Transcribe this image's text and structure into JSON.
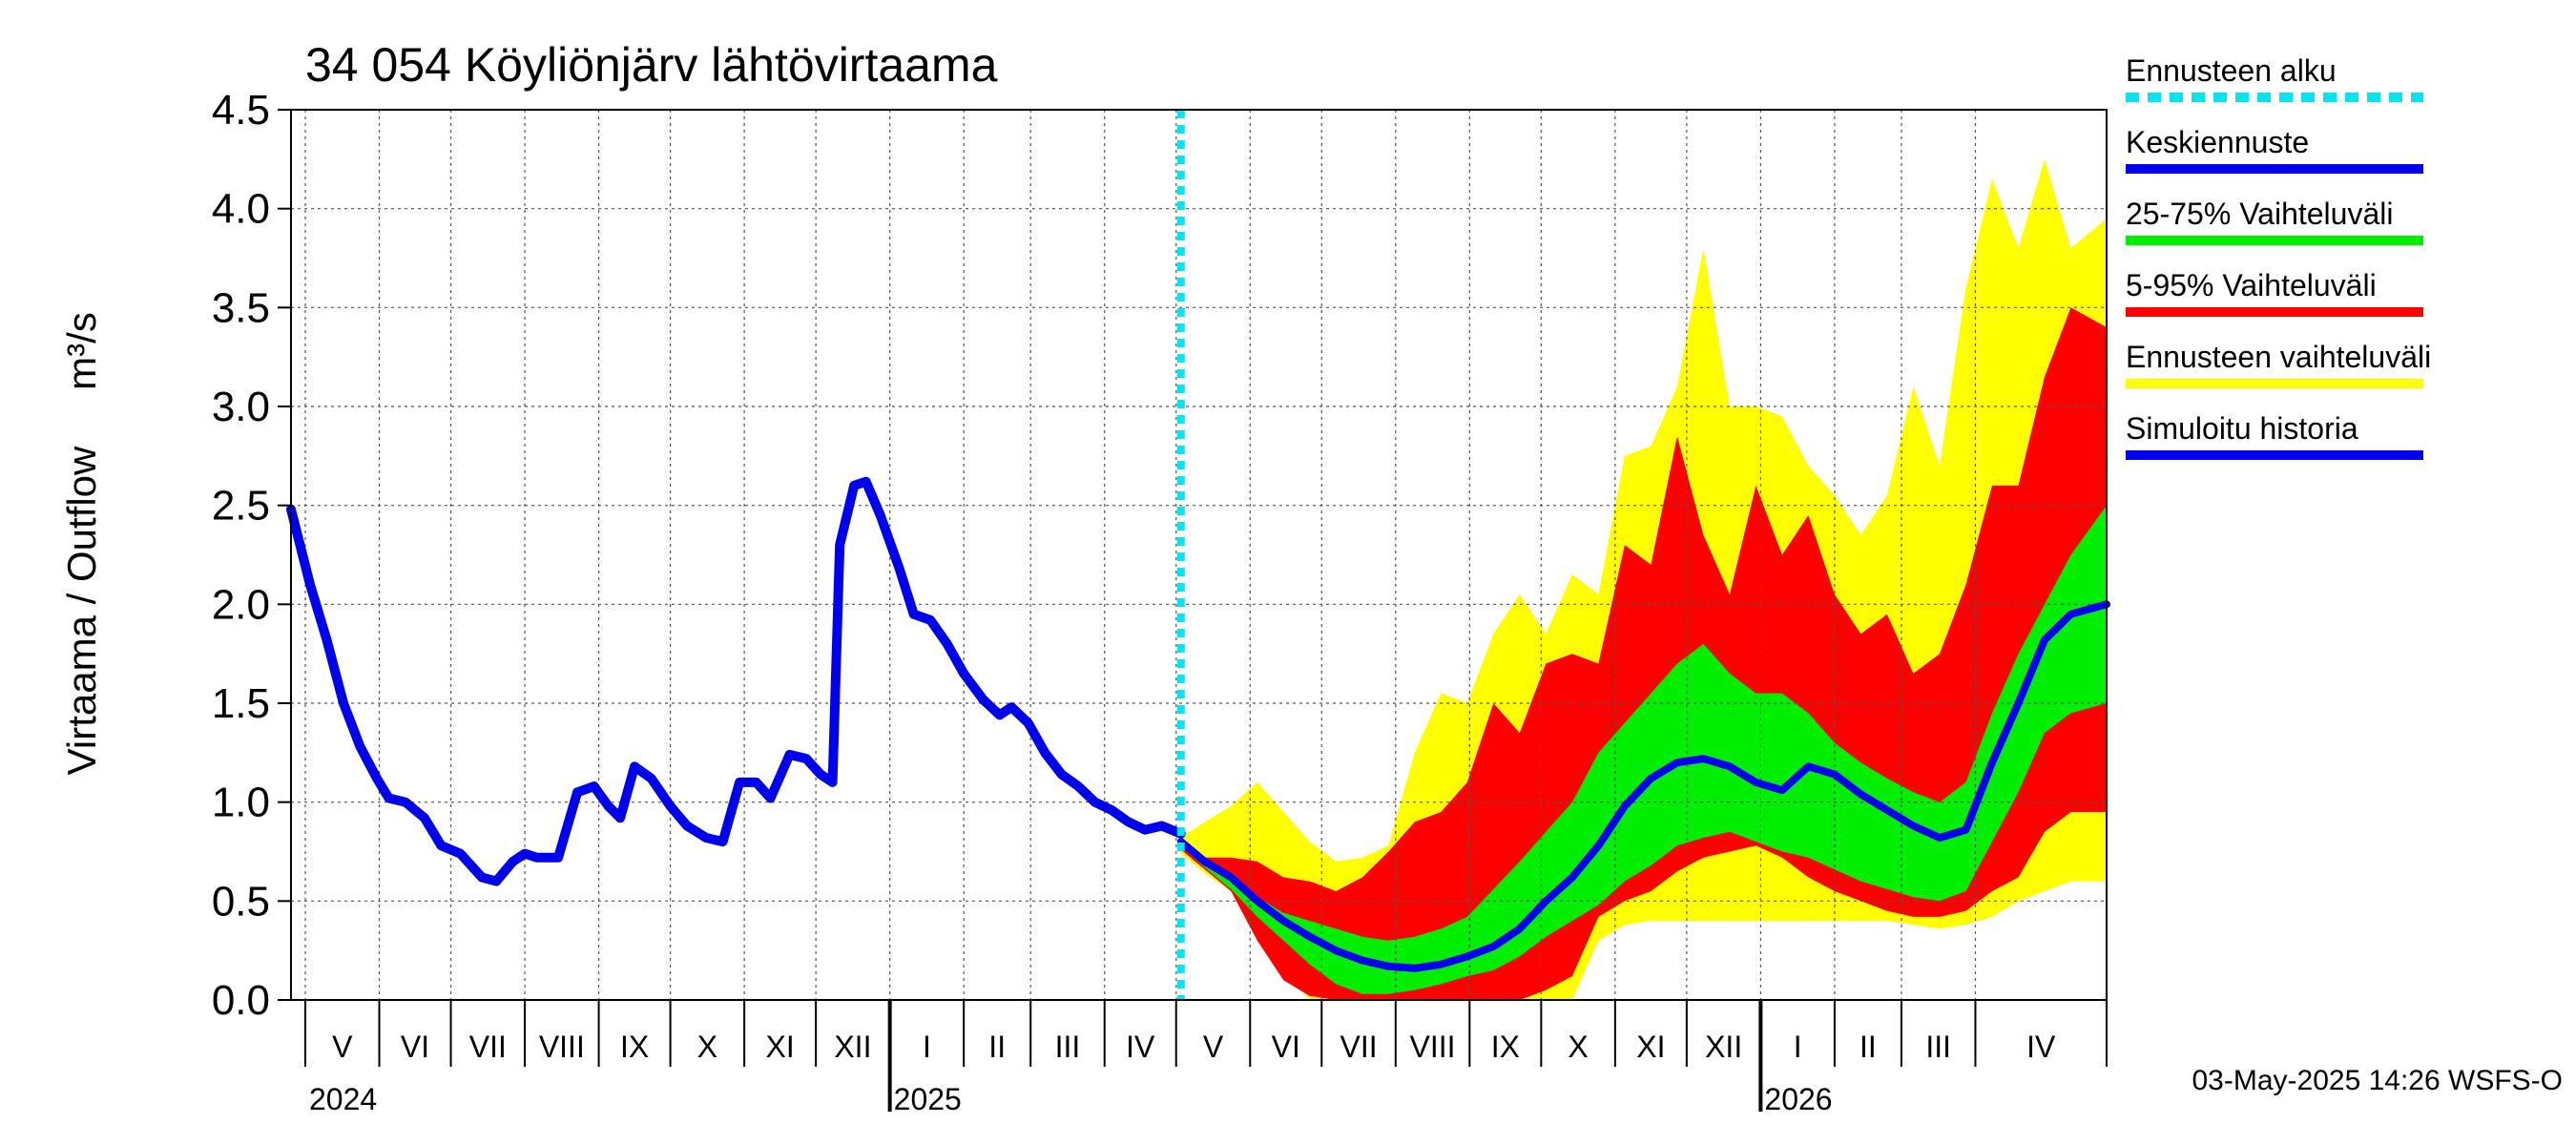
{
  "chart_data": {
    "type": "area",
    "title": "34 054 Köyliönjärv lähtövirtaama",
    "ylabel": "Virtaama / Outflow",
    "yunit": "m³/s",
    "ylim": [
      0.0,
      4.5
    ],
    "yticks": [
      "0.0",
      "0.5",
      "1.0",
      "1.5",
      "2.0",
      "2.5",
      "3.0",
      "3.5",
      "4.0",
      "4.5"
    ],
    "xlim": [
      "2024-04-25",
      "2026-05-26"
    ],
    "month_labels": [
      {
        "label": "V",
        "start": "2024-05-01"
      },
      {
        "label": "VI",
        "start": "2024-06-01"
      },
      {
        "label": "VII",
        "start": "2024-07-01"
      },
      {
        "label": "VIII",
        "start": "2024-08-01"
      },
      {
        "label": "IX",
        "start": "2024-09-01"
      },
      {
        "label": "X",
        "start": "2024-10-01"
      },
      {
        "label": "XI",
        "start": "2024-11-01"
      },
      {
        "label": "XII",
        "start": "2024-12-01"
      },
      {
        "label": "I",
        "start": "2025-01-01"
      },
      {
        "label": "II",
        "start": "2025-02-01"
      },
      {
        "label": "III",
        "start": "2025-03-01"
      },
      {
        "label": "IV",
        "start": "2025-04-01"
      },
      {
        "label": "V",
        "start": "2025-05-01"
      },
      {
        "label": "VI",
        "start": "2025-06-01"
      },
      {
        "label": "VII",
        "start": "2025-07-01"
      },
      {
        "label": "VIII",
        "start": "2025-08-01"
      },
      {
        "label": "IX",
        "start": "2025-09-01"
      },
      {
        "label": "X",
        "start": "2025-10-01"
      },
      {
        "label": "XI",
        "start": "2025-11-01"
      },
      {
        "label": "XII",
        "start": "2025-12-01"
      },
      {
        "label": "I",
        "start": "2026-01-01"
      },
      {
        "label": "II",
        "start": "2026-02-01"
      },
      {
        "label": "III",
        "start": "2026-03-01"
      },
      {
        "label": "IV",
        "start": "2026-04-01"
      }
    ],
    "year_labels": [
      {
        "label": "2024",
        "date": "2024-05-01"
      },
      {
        "label": "2025",
        "date": "2025-01-01"
      },
      {
        "label": "2026",
        "date": "2026-01-01"
      }
    ],
    "forecast_start": "2025-05-03",
    "grid": true,
    "legend_position": "right",
    "series": [
      {
        "name": "Simuloitu historia",
        "color": "#0000ee",
        "points": [
          [
            "2024-04-25",
            2.48
          ],
          [
            "2024-05-03",
            2.1
          ],
          [
            "2024-05-10",
            1.82
          ],
          [
            "2024-05-17",
            1.5
          ],
          [
            "2024-05-24",
            1.28
          ],
          [
            "2024-05-31",
            1.12
          ],
          [
            "2024-06-05",
            1.02
          ],
          [
            "2024-06-12",
            1.0
          ],
          [
            "2024-06-20",
            0.92
          ],
          [
            "2024-06-27",
            0.78
          ],
          [
            "2024-07-05",
            0.74
          ],
          [
            "2024-07-14",
            0.62
          ],
          [
            "2024-07-20",
            0.6
          ],
          [
            "2024-07-27",
            0.7
          ],
          [
            "2024-08-01",
            0.74
          ],
          [
            "2024-08-06",
            0.72
          ],
          [
            "2024-08-15",
            0.72
          ],
          [
            "2024-08-23",
            1.05
          ],
          [
            "2024-08-30",
            1.08
          ],
          [
            "2024-09-05",
            0.98
          ],
          [
            "2024-09-10",
            0.92
          ],
          [
            "2024-09-16",
            1.18
          ],
          [
            "2024-09-23",
            1.12
          ],
          [
            "2024-10-01",
            0.98
          ],
          [
            "2024-10-08",
            0.88
          ],
          [
            "2024-10-16",
            0.82
          ],
          [
            "2024-10-23",
            0.8
          ],
          [
            "2024-10-30",
            1.1
          ],
          [
            "2024-11-06",
            1.1
          ],
          [
            "2024-11-12",
            1.02
          ],
          [
            "2024-11-20",
            1.24
          ],
          [
            "2024-11-27",
            1.22
          ],
          [
            "2024-12-03",
            1.14
          ],
          [
            "2024-12-08",
            1.1
          ],
          [
            "2024-12-11",
            2.3
          ],
          [
            "2024-12-17",
            2.6
          ],
          [
            "2024-12-22",
            2.62
          ],
          [
            "2024-12-28",
            2.45
          ],
          [
            "2025-01-05",
            2.18
          ],
          [
            "2025-01-11",
            1.95
          ],
          [
            "2025-01-18",
            1.92
          ],
          [
            "2025-01-25",
            1.8
          ],
          [
            "2025-02-01",
            1.65
          ],
          [
            "2025-02-09",
            1.52
          ],
          [
            "2025-02-16",
            1.44
          ],
          [
            "2025-02-21",
            1.48
          ],
          [
            "2025-02-28",
            1.4
          ],
          [
            "2025-03-07",
            1.25
          ],
          [
            "2025-03-14",
            1.14
          ],
          [
            "2025-03-21",
            1.08
          ],
          [
            "2025-03-28",
            1.0
          ],
          [
            "2025-04-04",
            0.96
          ],
          [
            "2025-04-11",
            0.9
          ],
          [
            "2025-04-18",
            0.86
          ],
          [
            "2025-04-25",
            0.88
          ],
          [
            "2025-05-03",
            0.84
          ]
        ]
      },
      {
        "name": "Keskiennuste",
        "color": "#0000ee",
        "points": [
          [
            "2025-05-03",
            0.8
          ],
          [
            "2025-05-13",
            0.7
          ],
          [
            "2025-05-24",
            0.62
          ],
          [
            "2025-06-04",
            0.5
          ],
          [
            "2025-06-15",
            0.4
          ],
          [
            "2025-06-26",
            0.32
          ],
          [
            "2025-07-07",
            0.25
          ],
          [
            "2025-07-18",
            0.2
          ],
          [
            "2025-07-29",
            0.17
          ],
          [
            "2025-08-09",
            0.16
          ],
          [
            "2025-08-20",
            0.18
          ],
          [
            "2025-08-31",
            0.22
          ],
          [
            "2025-09-11",
            0.27
          ],
          [
            "2025-09-22",
            0.36
          ],
          [
            "2025-10-03",
            0.5
          ],
          [
            "2025-10-14",
            0.62
          ],
          [
            "2025-10-25",
            0.78
          ],
          [
            "2025-11-05",
            0.98
          ],
          [
            "2025-11-16",
            1.12
          ],
          [
            "2025-11-27",
            1.2
          ],
          [
            "2025-12-08",
            1.22
          ],
          [
            "2025-12-19",
            1.18
          ],
          [
            "2025-12-30",
            1.1
          ],
          [
            "2026-01-10",
            1.06
          ],
          [
            "2026-01-21",
            1.18
          ],
          [
            "2026-02-01",
            1.14
          ],
          [
            "2026-02-12",
            1.04
          ],
          [
            "2026-02-23",
            0.96
          ],
          [
            "2026-03-06",
            0.88
          ],
          [
            "2026-03-17",
            0.82
          ],
          [
            "2026-03-28",
            0.86
          ],
          [
            "2026-04-08",
            1.2
          ],
          [
            "2026-04-19",
            1.5
          ],
          [
            "2026-04-30",
            1.82
          ],
          [
            "2026-05-11",
            1.95
          ],
          [
            "2026-05-26",
            2.0
          ]
        ]
      }
    ],
    "bands": [
      {
        "name": "Ennusteen vaihteluväli",
        "color": "#ffff00",
        "points": [
          [
            "2025-05-03",
            0.74,
            0.82
          ],
          [
            "2025-05-13",
            0.64,
            0.9
          ],
          [
            "2025-05-24",
            0.55,
            0.98
          ],
          [
            "2025-06-04",
            0.35,
            1.1
          ],
          [
            "2025-06-15",
            0.15,
            0.95
          ],
          [
            "2025-06-26",
            0.0,
            0.8
          ],
          [
            "2025-07-07",
            0.0,
            0.7
          ],
          [
            "2025-07-18",
            0.0,
            0.72
          ],
          [
            "2025-07-29",
            0.0,
            0.78
          ],
          [
            "2025-08-09",
            0.0,
            1.25
          ],
          [
            "2025-08-20",
            0.0,
            1.55
          ],
          [
            "2025-08-31",
            0.0,
            1.5
          ],
          [
            "2025-09-11",
            0.0,
            1.85
          ],
          [
            "2025-09-22",
            0.0,
            2.05
          ],
          [
            "2025-10-03",
            0.0,
            1.85
          ],
          [
            "2025-10-14",
            0.0,
            2.15
          ],
          [
            "2025-10-25",
            0.3,
            2.05
          ],
          [
            "2025-11-05",
            0.38,
            2.75
          ],
          [
            "2025-11-16",
            0.4,
            2.8
          ],
          [
            "2025-11-27",
            0.4,
            3.1
          ],
          [
            "2025-12-08",
            0.4,
            3.8
          ],
          [
            "2025-12-19",
            0.4,
            3.0
          ],
          [
            "2025-12-30",
            0.4,
            3.0
          ],
          [
            "2026-01-10",
            0.4,
            2.95
          ],
          [
            "2026-01-21",
            0.4,
            2.7
          ],
          [
            "2026-02-01",
            0.4,
            2.55
          ],
          [
            "2026-02-12",
            0.4,
            2.35
          ],
          [
            "2026-02-23",
            0.4,
            2.55
          ],
          [
            "2026-03-06",
            0.38,
            3.1
          ],
          [
            "2026-03-17",
            0.36,
            2.7
          ],
          [
            "2026-03-28",
            0.38,
            3.6
          ],
          [
            "2026-04-08",
            0.42,
            4.15
          ],
          [
            "2026-04-19",
            0.5,
            3.8
          ],
          [
            "2026-04-30",
            0.55,
            4.25
          ],
          [
            "2026-05-11",
            0.6,
            3.8
          ],
          [
            "2026-05-26",
            0.6,
            3.95
          ]
        ]
      },
      {
        "name": "5-95% Vaihteluväli",
        "color": "#ff0000",
        "points": [
          [
            "2025-05-03",
            0.76,
            0.8
          ],
          [
            "2025-05-13",
            0.66,
            0.72
          ],
          [
            "2025-05-24",
            0.55,
            0.72
          ],
          [
            "2025-06-04",
            0.3,
            0.7
          ],
          [
            "2025-06-15",
            0.1,
            0.62
          ],
          [
            "2025-06-26",
            0.02,
            0.6
          ],
          [
            "2025-07-07",
            0.0,
            0.55
          ],
          [
            "2025-07-18",
            0.0,
            0.62
          ],
          [
            "2025-07-29",
            0.0,
            0.75
          ],
          [
            "2025-08-09",
            0.0,
            0.9
          ],
          [
            "2025-08-20",
            0.0,
            0.95
          ],
          [
            "2025-08-31",
            0.0,
            1.1
          ],
          [
            "2025-09-11",
            0.0,
            1.5
          ],
          [
            "2025-09-22",
            0.0,
            1.35
          ],
          [
            "2025-10-03",
            0.05,
            1.7
          ],
          [
            "2025-10-14",
            0.12,
            1.75
          ],
          [
            "2025-10-25",
            0.42,
            1.7
          ],
          [
            "2025-11-05",
            0.5,
            2.3
          ],
          [
            "2025-11-16",
            0.55,
            2.2
          ],
          [
            "2025-11-27",
            0.65,
            2.85
          ],
          [
            "2025-12-08",
            0.72,
            2.35
          ],
          [
            "2025-12-19",
            0.75,
            2.05
          ],
          [
            "2025-12-30",
            0.78,
            2.6
          ],
          [
            "2026-01-10",
            0.72,
            2.25
          ],
          [
            "2026-01-21",
            0.62,
            2.45
          ],
          [
            "2026-02-01",
            0.55,
            2.05
          ],
          [
            "2026-02-12",
            0.5,
            1.85
          ],
          [
            "2026-02-23",
            0.45,
            1.95
          ],
          [
            "2026-03-06",
            0.42,
            1.65
          ],
          [
            "2026-03-17",
            0.42,
            1.75
          ],
          [
            "2026-03-28",
            0.45,
            2.1
          ],
          [
            "2026-04-08",
            0.55,
            2.6
          ],
          [
            "2026-04-19",
            0.62,
            2.6
          ],
          [
            "2026-04-30",
            0.85,
            3.15
          ],
          [
            "2026-05-11",
            0.95,
            3.5
          ],
          [
            "2026-05-26",
            0.95,
            3.4
          ]
        ]
      },
      {
        "name": "25-75% Vaihteluväli",
        "color": "#00ee00",
        "points": [
          [
            "2025-05-03",
            0.78,
            0.8
          ],
          [
            "2025-05-13",
            0.67,
            0.7
          ],
          [
            "2025-05-24",
            0.56,
            0.64
          ],
          [
            "2025-06-04",
            0.42,
            0.52
          ],
          [
            "2025-06-15",
            0.3,
            0.44
          ],
          [
            "2025-06-26",
            0.18,
            0.4
          ],
          [
            "2025-07-07",
            0.08,
            0.36
          ],
          [
            "2025-07-18",
            0.03,
            0.32
          ],
          [
            "2025-07-29",
            0.03,
            0.3
          ],
          [
            "2025-08-09",
            0.05,
            0.32
          ],
          [
            "2025-08-20",
            0.08,
            0.36
          ],
          [
            "2025-08-31",
            0.12,
            0.42
          ],
          [
            "2025-09-11",
            0.15,
            0.56
          ],
          [
            "2025-09-22",
            0.22,
            0.7
          ],
          [
            "2025-10-03",
            0.32,
            0.85
          ],
          [
            "2025-10-14",
            0.4,
            1.0
          ],
          [
            "2025-10-25",
            0.48,
            1.25
          ],
          [
            "2025-11-05",
            0.6,
            1.4
          ],
          [
            "2025-11-16",
            0.68,
            1.55
          ],
          [
            "2025-11-27",
            0.78,
            1.7
          ],
          [
            "2025-12-08",
            0.82,
            1.8
          ],
          [
            "2025-12-19",
            0.85,
            1.65
          ],
          [
            "2025-12-30",
            0.8,
            1.55
          ],
          [
            "2026-01-10",
            0.75,
            1.55
          ],
          [
            "2026-01-21",
            0.72,
            1.45
          ],
          [
            "2026-02-01",
            0.66,
            1.3
          ],
          [
            "2026-02-12",
            0.6,
            1.2
          ],
          [
            "2026-02-23",
            0.56,
            1.12
          ],
          [
            "2026-03-06",
            0.52,
            1.05
          ],
          [
            "2026-03-17",
            0.5,
            1.0
          ],
          [
            "2026-03-28",
            0.55,
            1.1
          ],
          [
            "2026-04-08",
            0.8,
            1.45
          ],
          [
            "2026-04-19",
            1.05,
            1.75
          ],
          [
            "2026-04-30",
            1.35,
            2.0
          ],
          [
            "2026-05-11",
            1.45,
            2.25
          ],
          [
            "2026-05-26",
            1.5,
            2.5
          ]
        ]
      }
    ]
  },
  "legend": {
    "items": [
      {
        "label": "Ennusteen alku",
        "color": "#00e5ee",
        "style": "dashed"
      },
      {
        "label": "Keskiennuste",
        "color": "#0000ee",
        "style": "solid"
      },
      {
        "label": "25-75% Vaihteluväli",
        "color": "#00ee00",
        "style": "solid"
      },
      {
        "label": "5-95% Vaihteluväli",
        "color": "#ff0000",
        "style": "solid"
      },
      {
        "label": "Ennusteen vaihteluväli",
        "color": "#ffff00",
        "style": "solid"
      },
      {
        "label": "Simuloitu historia",
        "color": "#0000ee",
        "style": "solid"
      }
    ]
  },
  "footer": {
    "timestamp": "03-May-2025 14:26 WSFS-O"
  }
}
